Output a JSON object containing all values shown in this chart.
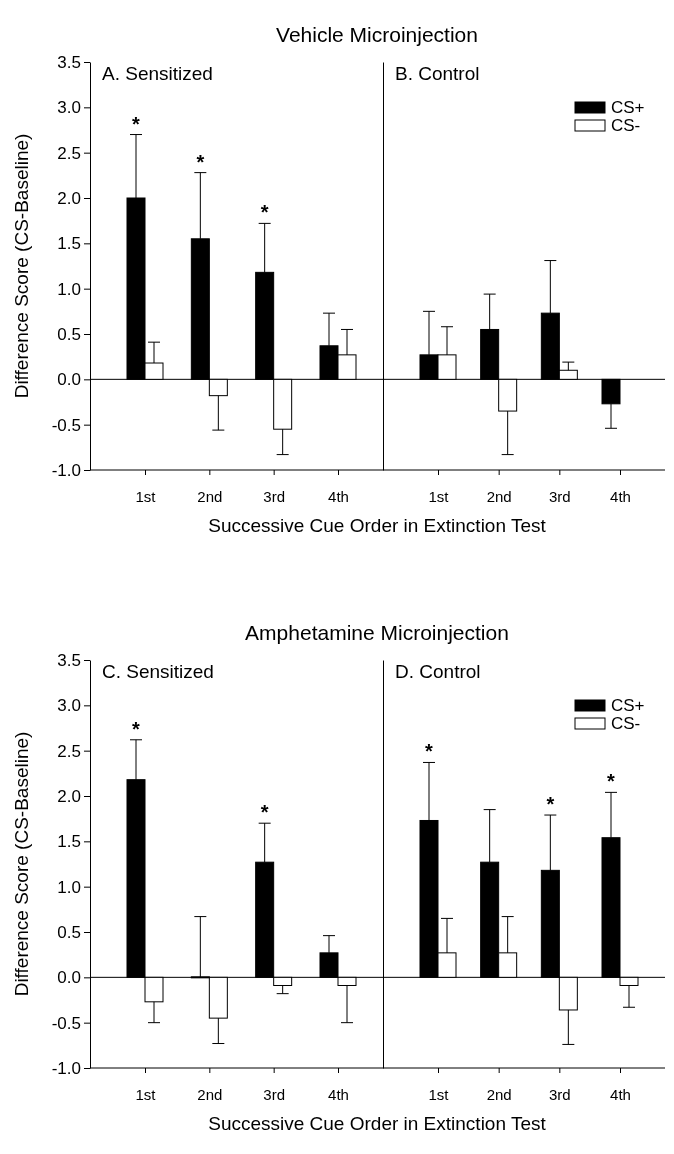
{
  "chart_data": [
    {
      "type": "bar",
      "subtitle": "Vehicle Microinjection",
      "title": "A.  Sensitized",
      "xlabel": "Successive Cue Order in Extinction Test",
      "ylabel": "Difference Score (CS-Baseline)",
      "categories": [
        "1st",
        "2nd",
        "3rd",
        "4th"
      ],
      "ylim": [
        -1.0,
        3.5
      ],
      "yticks": [
        {
          "value": -1,
          "label": "-1.0"
        },
        {
          "value": -0.5,
          "label": "-0.5"
        },
        {
          "value": 0,
          "label": "0.0"
        },
        {
          "value": 0.5,
          "label": "0.5"
        },
        {
          "value": 1,
          "label": "1.0"
        },
        {
          "value": 1.5,
          "label": "1.5"
        },
        {
          "value": 2,
          "label": "2.0"
        },
        {
          "value": 2.5,
          "label": "2.5"
        },
        {
          "value": 3,
          "label": "3.0"
        },
        {
          "value": 3.5,
          "label": "3.5"
        }
      ],
      "series": [
        {
          "color": "#000000",
          "values": [
            2.0,
            1.55,
            1.18,
            0.37
          ],
          "errors": [
            [
              2.0,
              2.7
            ],
            [
              1.55,
              2.28
            ],
            [
              1.18,
              1.72
            ],
            [
              0.37,
              0.73
            ]
          ]
        },
        {
          "color": "#ffffff",
          "values": [
            0.18,
            -0.18,
            -0.55,
            0.27
          ],
          "errors": [
            [
              0.18,
              0.41
            ],
            [
              -0.56,
              -0.18
            ],
            [
              -0.83,
              -0.55
            ],
            [
              0.27,
              0.55
            ]
          ]
        }
      ],
      "annotations": [
        {
          "text": "*",
          "x": "1st",
          "y": 2.7
        },
        {
          "text": "*",
          "x": "2nd",
          "y": 2.28
        },
        {
          "text": "*",
          "x": "3rd",
          "y": 1.72
        }
      ],
      "legend": false
    },
    {
      "type": "bar",
      "title": "B.  Control",
      "categories": [
        "1st",
        "2nd",
        "3rd",
        "4th"
      ],
      "ylim": [
        -1.0,
        3.5
      ],
      "tick_labels": "x",
      "series": [
        {
          "name": "CS+",
          "color": "#000000",
          "values": [
            0.27,
            0.55,
            0.73,
            -0.27
          ],
          "errors": [
            [
              0.27,
              0.75
            ],
            [
              0.55,
              0.94
            ],
            [
              0.73,
              1.31
            ],
            [
              -0.54,
              -0.27
            ]
          ]
        },
        {
          "name": "CS-",
          "color": "#ffffff",
          "values": [
            0.27,
            -0.35,
            0.1,
            null
          ],
          "errors": [
            [
              0.27,
              0.58
            ],
            [
              -0.83,
              -0.35
            ],
            [
              0.1,
              0.19
            ],
            null
          ]
        }
      ],
      "legend": "top right"
    },
    {
      "type": "bar",
      "subtitle": "Amphetamine Microinjection",
      "title": "C.  Sensitized",
      "xlabel": "Successive Cue Order in Extinction Test",
      "ylabel": "Difference Score (CS-Baseline)",
      "categories": [
        "1st",
        "2nd",
        "3rd",
        "4th"
      ],
      "ylim": [
        -1.0,
        3.5
      ],
      "yticks": [
        {
          "value": -1,
          "label": "-1.0"
        },
        {
          "value": -0.5,
          "label": "-0.5"
        },
        {
          "value": 0,
          "label": "0.0"
        },
        {
          "value": 0.5,
          "label": "0.5"
        },
        {
          "value": 1,
          "label": "1.0"
        },
        {
          "value": 1.5,
          "label": "1.5"
        },
        {
          "value": 2,
          "label": "2.0"
        },
        {
          "value": 2.5,
          "label": "2.5"
        },
        {
          "value": 3,
          "label": "3.0"
        },
        {
          "value": 3.5,
          "label": "3.5"
        }
      ],
      "series": [
        {
          "color": "#000000",
          "values": [
            2.18,
            0,
            1.27,
            0.27
          ],
          "errors": [
            [
              2.18,
              2.62
            ],
            [
              0,
              0.67
            ],
            [
              1.27,
              1.7
            ],
            [
              0.27,
              0.46
            ]
          ]
        },
        {
          "color": "#ffffff",
          "values": [
            -0.27,
            -0.45,
            -0.09,
            -0.09
          ],
          "errors": [
            [
              -0.5,
              -0.27
            ],
            [
              -0.73,
              -0.45
            ],
            [
              -0.18,
              -0.09
            ],
            [
              -0.5,
              -0.09
            ]
          ]
        }
      ],
      "annotations": [
        {
          "text": "*",
          "x": "1st",
          "y": 2.62
        },
        {
          "text": "*",
          "x": "3rd",
          "y": 1.7
        }
      ],
      "legend": false
    },
    {
      "type": "bar",
      "title": "D.  Control",
      "categories": [
        "1st",
        "2nd",
        "3rd",
        "4th"
      ],
      "ylim": [
        -1.0,
        3.5
      ],
      "tick_labels": "x",
      "series": [
        {
          "name": "CS+",
          "color": "#000000",
          "values": [
            1.73,
            1.27,
            1.18,
            1.54
          ],
          "errors": [
            [
              1.73,
              2.37
            ],
            [
              1.27,
              1.85
            ],
            [
              1.18,
              1.79
            ],
            [
              1.54,
              2.04
            ]
          ]
        },
        {
          "name": "CS-",
          "color": "#ffffff",
          "values": [
            0.27,
            0.27,
            -0.36,
            -0.09
          ],
          "errors": [
            [
              0.27,
              0.65
            ],
            [
              0.27,
              0.67
            ],
            [
              -0.74,
              -0.36
            ],
            [
              -0.33,
              -0.09
            ]
          ]
        }
      ],
      "annotations": [
        {
          "text": "*",
          "x": "1st",
          "y": 2.37
        },
        {
          "text": "*",
          "x": "3rd",
          "y": 1.79
        },
        {
          "text": "*",
          "x": "4th",
          "y": 2.04
        }
      ],
      "legend": "top right"
    }
  ]
}
